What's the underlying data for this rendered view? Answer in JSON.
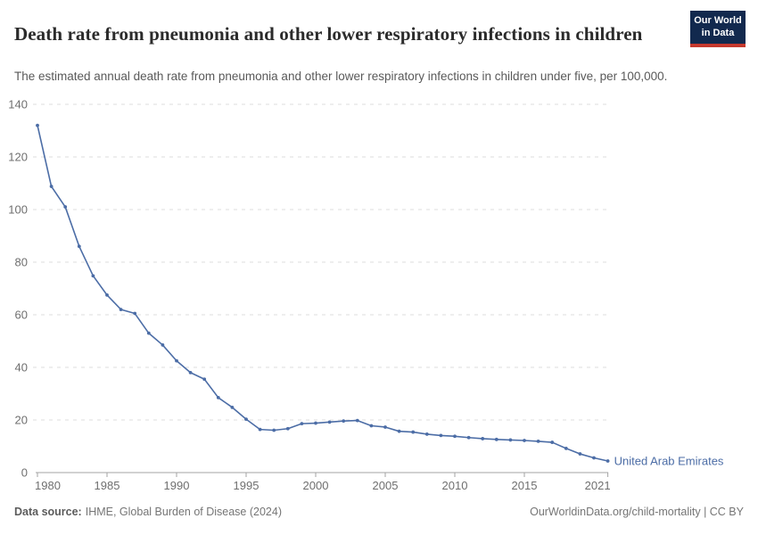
{
  "header": {
    "title": "Death rate from pneumonia and other lower respiratory infections in children",
    "subtitle": "The estimated annual death rate from pneumonia and other lower respiratory infections in children under five, per 100,000.",
    "logo": {
      "line1": "Our World",
      "line2": "in Data"
    }
  },
  "chart_data": {
    "type": "line",
    "title": "Death rate from pneumonia and other lower respiratory infections in children",
    "xlabel": "",
    "ylabel": "",
    "xlim": [
      1980,
      2021
    ],
    "ylim": [
      0,
      140
    ],
    "x_ticks": [
      1980,
      1985,
      1990,
      1995,
      2000,
      2005,
      2010,
      2015,
      2021
    ],
    "y_ticks": [
      0,
      20,
      40,
      60,
      80,
      100,
      120,
      140
    ],
    "grid": "horizontal-dashed",
    "legend_position": "end-of-line-label",
    "series": [
      {
        "name": "United Arab Emirates",
        "color": "#4C6DA6",
        "x": [
          1980,
          1981,
          1982,
          1983,
          1984,
          1985,
          1986,
          1987,
          1988,
          1989,
          1990,
          1991,
          1992,
          1993,
          1994,
          1995,
          1996,
          1997,
          1998,
          1999,
          2000,
          2001,
          2002,
          2003,
          2004,
          2005,
          2006,
          2007,
          2008,
          2009,
          2010,
          2011,
          2012,
          2013,
          2014,
          2015,
          2016,
          2017,
          2018,
          2019,
          2020,
          2021
        ],
        "values": [
          132,
          108.8,
          101,
          86,
          74.8,
          67.5,
          62,
          60.5,
          53,
          48.5,
          42.5,
          38,
          35.5,
          28.5,
          24.8,
          20.3,
          16.4,
          16.1,
          16.7,
          18.6,
          18.8,
          19.2,
          19.6,
          19.8,
          17.8,
          17.3,
          15.7,
          15.4,
          14.6,
          14.1,
          13.8,
          13.3,
          12.9,
          12.6,
          12.4,
          12.2,
          11.9,
          11.5,
          9.2,
          7.1,
          5.6,
          4.4
        ]
      }
    ]
  },
  "footer": {
    "source_label": "Data source:",
    "source_value": "IHME, Global Burden of Disease (2024)",
    "link": "OurWorldinData.org/child-mortality | CC BY"
  },
  "colors": {
    "line": "#4C6DA6",
    "gridline": "#dcdcdc",
    "axis": "#a3a3a3",
    "tick_label": "#6f6f6f",
    "logo_bg": "#12294e",
    "logo_red": "#c5382d"
  }
}
